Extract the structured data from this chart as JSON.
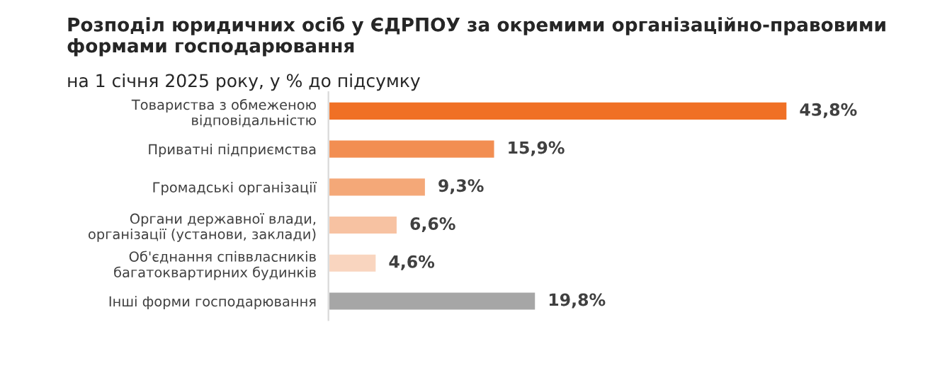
{
  "chart_data": {
    "type": "bar",
    "orientation": "horizontal",
    "title": "Розподіл юридичних осіб у ЄДРПОУ за окремими організаційно-правовими формами господарювання",
    "subtitle": "на 1 січня 2025 року, у % до підсумку",
    "categories": [
      "Товариства з обмеженою\nвідповідальністю",
      "Приватні підприємства",
      "Громадські організації",
      "Органи державної влади,\nорганізації (установи, заклади)",
      "Об'єднання співвласників\nбагатоквартирних будинків",
      "Інші форми господарювання"
    ],
    "values": [
      43.8,
      15.9,
      9.3,
      6.6,
      4.6,
      19.8
    ],
    "value_labels": [
      "43,8%",
      "15,9%",
      "9,3%",
      "6,6%",
      "4,6%",
      "19,8%"
    ],
    "colors": [
      "#f07025",
      "#f28e52",
      "#f4a878",
      "#f7c2a2",
      "#f9d5bf",
      "#a6a6a6"
    ],
    "grid": false,
    "legend": false
  }
}
